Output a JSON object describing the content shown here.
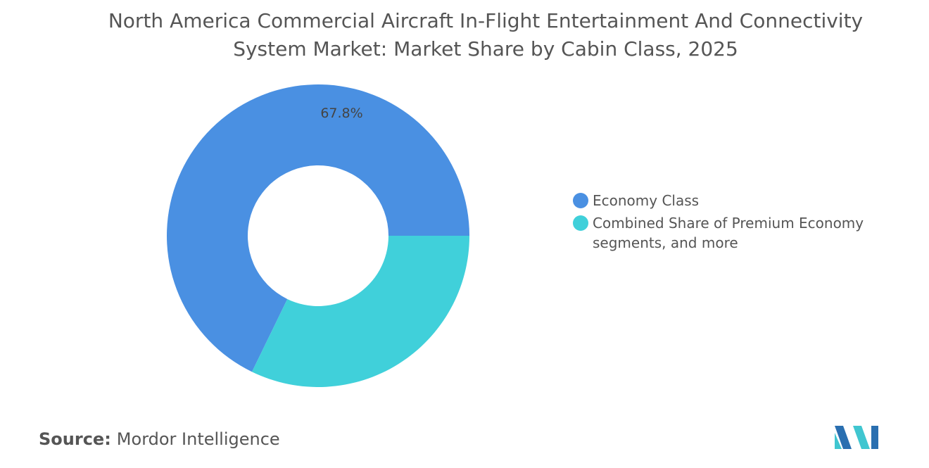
{
  "chart_data": {
    "type": "donut",
    "title": "North America Commercial Aircraft In-Flight Entertainment And Connectivity System Market: Market Share by Cabin Class, 2025",
    "categories": [
      "Economy Class",
      "Combined Share of Premium Economy segments, and more"
    ],
    "values": [
      67.8,
      32.2
    ],
    "value_labels": [
      "67.8%",
      null
    ],
    "colors": [
      "#4a90e2",
      "#40d0da"
    ],
    "legend": "right"
  },
  "footer": {
    "source_label": "Source:",
    "source": "Mordor Intelligence"
  }
}
